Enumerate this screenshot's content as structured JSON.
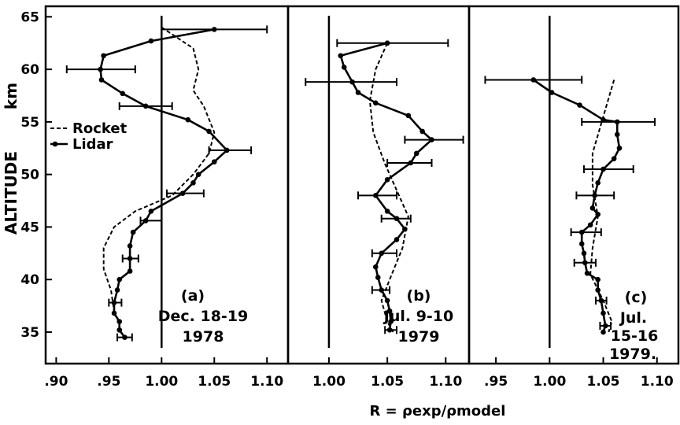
{
  "chart_data": {
    "type": "line",
    "ylabel_parts": [
      "ALTITUDE",
      "km"
    ],
    "xlabel": "R = ρexp/ρmodel",
    "ylim": [
      32,
      66
    ],
    "yticks": [
      35,
      40,
      45,
      50,
      55,
      60,
      65
    ],
    "yticklabels": [
      "35",
      "40",
      "45",
      "50",
      "55",
      "60",
      "65"
    ],
    "legend": {
      "position": "left",
      "entries": [
        "Rocket",
        "Lidar"
      ]
    },
    "grid": false,
    "panels": [
      {
        "label": "(a)",
        "date_lines": [
          "Dec. 18-19",
          "1978"
        ],
        "xlim": [
          0.89,
          1.12
        ],
        "xticks": [
          0.9,
          0.95,
          1.0,
          1.05,
          1.1
        ],
        "xticklabels": [
          ".90",
          ".95",
          "1.00",
          "1.05",
          "1.10"
        ],
        "reference_line": 1.0,
        "series": [
          {
            "name": "Rocket",
            "style": "dashed",
            "points": [
              [
                1.0,
                64
              ],
              [
                1.03,
                62
              ],
              [
                1.035,
                60
              ],
              [
                1.03,
                58
              ],
              [
                1.04,
                56.5
              ],
              [
                1.05,
                54
              ],
              [
                1.045,
                52
              ],
              [
                1.03,
                50
              ],
              [
                1.01,
                48
              ],
              [
                0.975,
                46.5
              ],
              [
                0.955,
                45
              ],
              [
                0.945,
                43
              ],
              [
                0.945,
                41
              ],
              [
                0.952,
                39
              ],
              [
                0.955,
                37
              ]
            ]
          },
          {
            "name": "Lidar",
            "style": "solid",
            "points": [
              [
                1.05,
                63.8
              ],
              [
                0.99,
                62.7
              ],
              [
                0.945,
                61.3
              ],
              [
                0.942,
                60
              ],
              [
                0.943,
                59
              ],
              [
                0.963,
                57.7
              ],
              [
                0.985,
                56.5
              ],
              [
                1.025,
                55.2
              ],
              [
                1.045,
                54.1
              ],
              [
                1.062,
                52.3
              ],
              [
                1.05,
                51.2
              ],
              [
                1.035,
                50
              ],
              [
                1.03,
                49.2
              ],
              [
                1.02,
                48.2
              ],
              [
                0.99,
                46.5
              ],
              [
                0.985,
                45.6
              ],
              [
                0.973,
                44.5
              ],
              [
                0.97,
                43.2
              ],
              [
                0.97,
                42
              ],
              [
                0.97,
                40.8
              ],
              [
                0.96,
                40
              ],
              [
                0.958,
                39
              ],
              [
                0.955,
                37.8
              ],
              [
                0.955,
                36.8
              ],
              [
                0.96,
                36
              ],
              [
                0.96,
                35.2
              ],
              [
                0.965,
                34.5
              ]
            ]
          }
        ],
        "error_bars": [
          {
            "center": [
              1.05,
              63.8
            ],
            "xerr": [
              1.0,
              1.1
            ]
          },
          {
            "center": [
              0.942,
              60
            ],
            "xerr": [
              0.91,
              0.975
            ]
          },
          {
            "center": [
              0.985,
              56.5
            ],
            "xerr": [
              0.96,
              1.01
            ]
          },
          {
            "center": [
              1.062,
              52.3
            ],
            "xerr": [
              1.045,
              1.085
            ]
          },
          {
            "center": [
              1.02,
              48.2
            ],
            "xerr": [
              1.005,
              1.04
            ]
          },
          {
            "center": [
              0.985,
              45.6
            ],
            "xerr": [
              0.98,
              1.0
            ]
          },
          {
            "center": [
              0.97,
              42
            ],
            "xerr": [
              0.963,
              0.978
            ]
          },
          {
            "center": [
              0.955,
              37.8
            ],
            "xerr": [
              0.95,
              0.962
            ]
          },
          {
            "center": [
              0.965,
              34.5
            ],
            "xerr": [
              0.958,
              0.972
            ]
          }
        ]
      },
      {
        "label": "(b)",
        "date_lines": [
          "Jul. 9-10",
          "1979"
        ],
        "xlim": [
          0.965,
          1.12
        ],
        "xticks": [
          1.0,
          1.05,
          1.1
        ],
        "xticklabels": [
          "1.00",
          "1.05",
          "1.10"
        ],
        "reference_line": 1.0,
        "series": [
          {
            "name": "Rocket",
            "style": "dashed",
            "points": [
              [
                1.05,
                62.5
              ],
              [
                1.04,
                60
              ],
              [
                1.035,
                57
              ],
              [
                1.038,
                54
              ],
              [
                1.048,
                51
              ],
              [
                1.058,
                48.5
              ],
              [
                1.068,
                46
              ],
              [
                1.063,
                43
              ],
              [
                1.052,
                40
              ],
              [
                1.045,
                38
              ],
              [
                1.05,
                36
              ],
              [
                1.055,
                35
              ]
            ]
          },
          {
            "name": "Lidar",
            "style": "solid",
            "points": [
              [
                1.05,
                62.5
              ],
              [
                1.01,
                61.3
              ],
              [
                1.013,
                60.2
              ],
              [
                1.02,
                58.8
              ],
              [
                1.025,
                57.8
              ],
              [
                1.04,
                56.8
              ],
              [
                1.068,
                55.6
              ],
              [
                1.08,
                54.1
              ],
              [
                1.088,
                53.3
              ],
              [
                1.075,
                52
              ],
              [
                1.07,
                51.1
              ],
              [
                1.05,
                49.5
              ],
              [
                1.04,
                48
              ],
              [
                1.05,
                46.5
              ],
              [
                1.058,
                45.8
              ],
              [
                1.065,
                44.8
              ],
              [
                1.058,
                43.8
              ],
              [
                1.045,
                42.5
              ],
              [
                1.04,
                41.2
              ],
              [
                1.042,
                40.2
              ],
              [
                1.045,
                39
              ],
              [
                1.05,
                38
              ],
              [
                1.052,
                37
              ],
              [
                1.053,
                36
              ],
              [
                1.052,
                35.2
              ]
            ]
          }
        ],
        "error_bars": [
          {
            "center": [
              1.05,
              62.5
            ],
            "xerr": [
              1.007,
              1.102
            ]
          },
          {
            "center": [
              1.02,
              58.8
            ],
            "xerr": [
              0.98,
              1.058
            ]
          },
          {
            "center": [
              1.088,
              53.3
            ],
            "xerr": [
              1.065,
              1.115
            ]
          },
          {
            "center": [
              1.07,
              51.1
            ],
            "xerr": [
              1.05,
              1.088
            ]
          },
          {
            "center": [
              1.04,
              48
            ],
            "xerr": [
              1.025,
              1.058
            ]
          },
          {
            "center": [
              1.058,
              45.8
            ],
            "xerr": [
              1.045,
              1.07
            ]
          },
          {
            "center": [
              1.045,
              42.5
            ],
            "xerr": [
              1.037,
              1.058
            ]
          },
          {
            "center": [
              1.045,
              39
            ],
            "xerr": [
              1.037,
              1.052
            ]
          },
          {
            "center": [
              1.052,
              35.2
            ],
            "xerr": [
              1.048,
              1.058
            ]
          }
        ]
      },
      {
        "label": "(c)",
        "date_lines": [
          "Jul.",
          "15-16",
          "1979."
        ],
        "xlim": [
          0.925,
          1.12
        ],
        "xticks": [
          0.95,
          1.0,
          1.05,
          1.1
        ],
        "xticklabels": [
          ".95",
          "1.00",
          "1.05",
          "1.10"
        ],
        "reference_line": 1.0,
        "series": [
          {
            "name": "Rocket",
            "style": "dashed",
            "points": [
              [
                1.06,
                59
              ],
              [
                1.05,
                55.5
              ],
              [
                1.04,
                52
              ],
              [
                1.04,
                49
              ],
              [
                1.045,
                46
              ],
              [
                1.04,
                43
              ],
              [
                1.038,
                40.5
              ],
              [
                1.05,
                38
              ],
              [
                1.058,
                36
              ],
              [
                1.055,
                35
              ]
            ]
          },
          {
            "name": "Lidar",
            "style": "solid",
            "points": [
              [
                0.985,
                59
              ],
              [
                1.002,
                57.8
              ],
              [
                1.028,
                56.6
              ],
              [
                1.05,
                55.2
              ],
              [
                1.063,
                55
              ],
              [
                1.063,
                53.8
              ],
              [
                1.065,
                52.5
              ],
              [
                1.06,
                51.5
              ],
              [
                1.05,
                50.5
              ],
              [
                1.045,
                49.2
              ],
              [
                1.042,
                48
              ],
              [
                1.04,
                46.8
              ],
              [
                1.045,
                46.2
              ],
              [
                1.038,
                45.2
              ],
              [
                1.03,
                44.5
              ],
              [
                1.03,
                43.4
              ],
              [
                1.032,
                42.5
              ],
              [
                1.033,
                41.6
              ],
              [
                1.035,
                40.6
              ],
              [
                1.045,
                40
              ],
              [
                1.045,
                39
              ],
              [
                1.048,
                38
              ],
              [
                1.05,
                36.8
              ],
              [
                1.052,
                35.6
              ],
              [
                1.05,
                35
              ]
            ]
          }
        ],
        "error_bars": [
          {
            "center": [
              0.985,
              59
            ],
            "xerr": [
              0.94,
              1.03
            ]
          },
          {
            "center": [
              1.063,
              55
            ],
            "xerr": [
              1.03,
              1.098
            ]
          },
          {
            "center": [
              1.05,
              50.5
            ],
            "xerr": [
              1.032,
              1.078
            ]
          },
          {
            "center": [
              1.042,
              48
            ],
            "xerr": [
              1.025,
              1.06
            ]
          },
          {
            "center": [
              1.03,
              44.5
            ],
            "xerr": [
              1.02,
              1.048
            ]
          },
          {
            "center": [
              1.033,
              41.6
            ],
            "xerr": [
              1.023,
              1.043
            ]
          },
          {
            "center": [
              1.048,
              38
            ],
            "xerr": [
              1.043,
              1.053
            ]
          },
          {
            "center": [
              1.052,
              35.6
            ],
            "xerr": [
              1.047,
              1.057
            ]
          }
        ]
      }
    ]
  }
}
